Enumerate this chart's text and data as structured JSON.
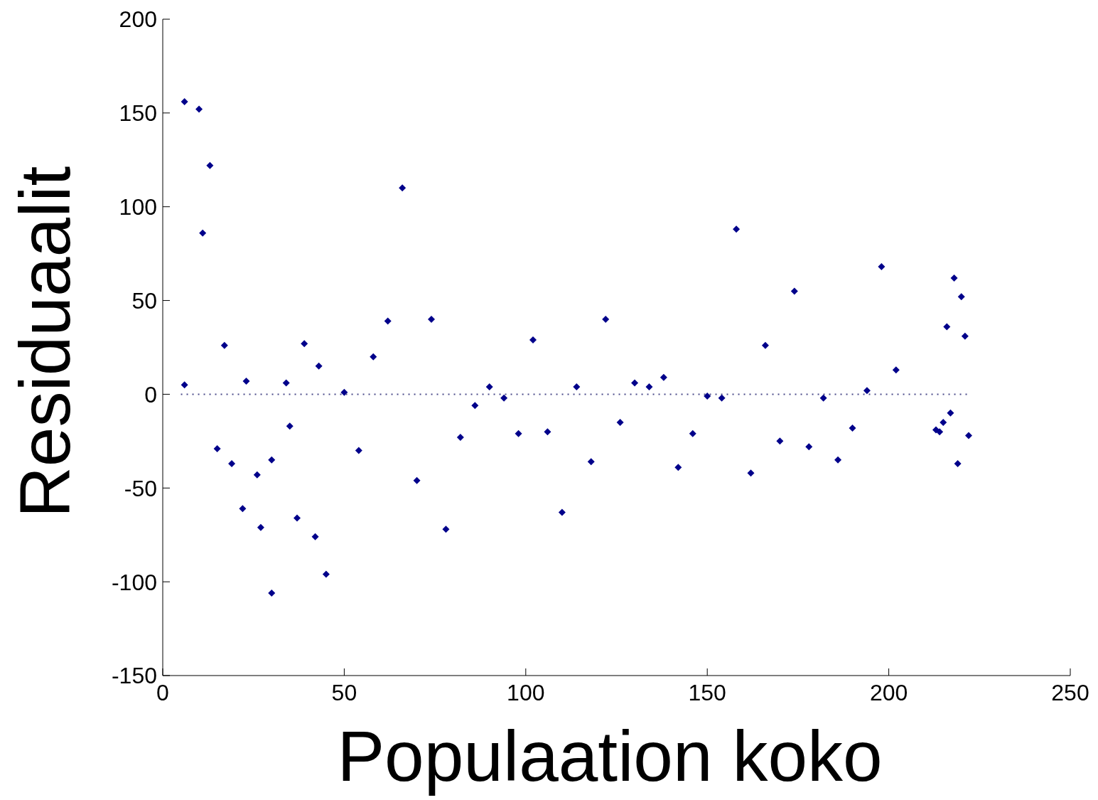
{
  "chart_data": {
    "type": "scatter",
    "xlabel": "Populaation koko",
    "ylabel": "Residuaalit",
    "xlim": [
      0,
      250
    ],
    "xticks": [
      0,
      50,
      100,
      150,
      200,
      250
    ],
    "ylim": [
      -150,
      200
    ],
    "yticks": [
      -150,
      -100,
      -50,
      0,
      50,
      100,
      150,
      200
    ],
    "marker": "diamond",
    "series": [
      {
        "color": "#00008b",
        "x": [
          6,
          6,
          10,
          11,
          13,
          15,
          17,
          19,
          22,
          23,
          26,
          27,
          30,
          30,
          34,
          35,
          37,
          39,
          42,
          43,
          45,
          50,
          54,
          58,
          62,
          66,
          70,
          74,
          78,
          82,
          86,
          90,
          94,
          98,
          102,
          106,
          110,
          114,
          118,
          122,
          126,
          130,
          134,
          138,
          142,
          146,
          150,
          154,
          158,
          162,
          166,
          170,
          174,
          178,
          182,
          186,
          190,
          194,
          198,
          202,
          213,
          214,
          215,
          216,
          217,
          218,
          219,
          220,
          221,
          222
        ],
        "values": [
          5,
          156,
          152,
          86,
          122,
          -29,
          26,
          -37,
          -61,
          7,
          -43,
          -71,
          -35,
          -106,
          6,
          -17,
          -66,
          27,
          -76,
          15,
          -96,
          1,
          -30,
          20,
          39,
          110,
          -46,
          40,
          -72,
          -23,
          -6,
          4,
          -2,
          -21,
          29,
          -20,
          -63,
          4,
          -36,
          40,
          -15,
          6,
          4,
          9,
          -39,
          -21,
          -1,
          -2,
          88,
          -42,
          26,
          -25,
          55,
          -28,
          -2,
          -35,
          -18,
          2,
          68,
          13,
          -19,
          -20,
          -15,
          36,
          -10,
          62,
          -37,
          52,
          31,
          -22
        ]
      },
      {
        "type": "line",
        "color": "#4a4a8a",
        "line_style": "dotted",
        "marker": "none",
        "x": [
          5,
          222
        ],
        "values": [
          0,
          0
        ]
      }
    ]
  }
}
